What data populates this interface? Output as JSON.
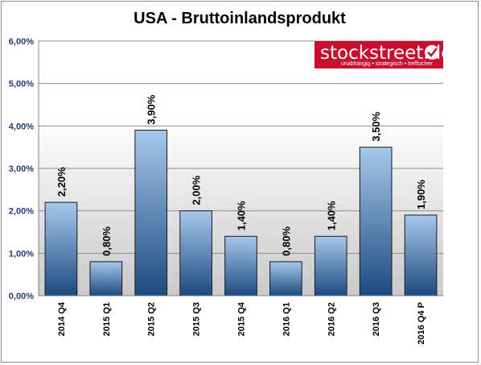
{
  "chart_data": {
    "type": "bar",
    "title": "USA - Bruttoinlandsprodukt",
    "categories": [
      "2014 Q4",
      "2015 Q1",
      "2015 Q2",
      "2015 Q3",
      "2015 Q4",
      "2016 Q1",
      "2016 Q2",
      "2016 Q3",
      "2016 Q4 P"
    ],
    "values": [
      2.2,
      0.8,
      3.9,
      2.0,
      1.4,
      0.8,
      1.4,
      3.5,
      1.9
    ],
    "data_labels": [
      "2,20%",
      "0,80%",
      "3,90%",
      "2,00%",
      "1,40%",
      "0,80%",
      "1,40%",
      "3,50%",
      "1,90%"
    ],
    "ylim": [
      0,
      6
    ],
    "yticks": [
      "0,00%",
      "1,00%",
      "2,00%",
      "3,00%",
      "4,00%",
      "5,00%",
      "6,00%"
    ],
    "xlabel": "",
    "ylabel": "",
    "grid": true,
    "legend": "none"
  },
  "logo": {
    "text": "stockstreet.de",
    "tagline": "unabhängig • strategisch • treffsicher",
    "color": "#c8102e"
  },
  "colors": {
    "bar_top": "#a7c8ec",
    "bar_bottom": "#1c4a80",
    "plot_bg_top": "#ffffff",
    "plot_bg_bottom": "#c9c9c9",
    "axis_text": "#1f3d73"
  }
}
